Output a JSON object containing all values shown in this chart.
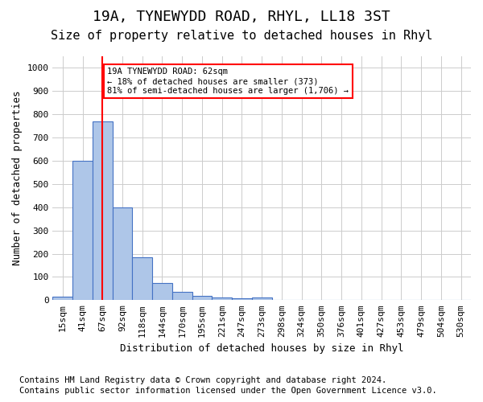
{
  "title": "19A, TYNEWYDD ROAD, RHYL, LL18 3ST",
  "subtitle": "Size of property relative to detached houses in Rhyl",
  "xlabel": "Distribution of detached houses by size in Rhyl",
  "ylabel": "Number of detached properties",
  "footnote1": "Contains HM Land Registry data © Crown copyright and database right 2024.",
  "footnote2": "Contains public sector information licensed under the Open Government Licence v3.0.",
  "bin_labels": [
    "15sqm",
    "41sqm",
    "67sqm",
    "92sqm",
    "118sqm",
    "144sqm",
    "170sqm",
    "195sqm",
    "221sqm",
    "247sqm",
    "273sqm",
    "298sqm",
    "324sqm",
    "350sqm",
    "376sqm",
    "401sqm",
    "427sqm",
    "453sqm",
    "479sqm",
    "504sqm",
    "530sqm"
  ],
  "bar_values": [
    15,
    600,
    770,
    400,
    185,
    75,
    37,
    18,
    13,
    8,
    12,
    0,
    0,
    0,
    0,
    0,
    0,
    0,
    0,
    0,
    0
  ],
  "bar_color": "#aec6e8",
  "bar_edge_color": "#4472c4",
  "ylim": [
    0,
    1050
  ],
  "yticks": [
    0,
    100,
    200,
    300,
    400,
    500,
    600,
    700,
    800,
    900,
    1000
  ],
  "property_bin_index": 2,
  "annotation_text": "19A TYNEWYDD ROAD: 62sqm\n← 18% of detached houses are smaller (373)\n81% of semi-detached houses are larger (1,706) →",
  "annotation_box_color": "white",
  "annotation_box_edgecolor": "red",
  "vline_color": "red",
  "vline_x": 2,
  "grid_color": "#cccccc",
  "bg_color": "white",
  "title_fontsize": 13,
  "subtitle_fontsize": 11,
  "tick_fontsize": 8,
  "label_fontsize": 9,
  "footnote_fontsize": 7.5
}
